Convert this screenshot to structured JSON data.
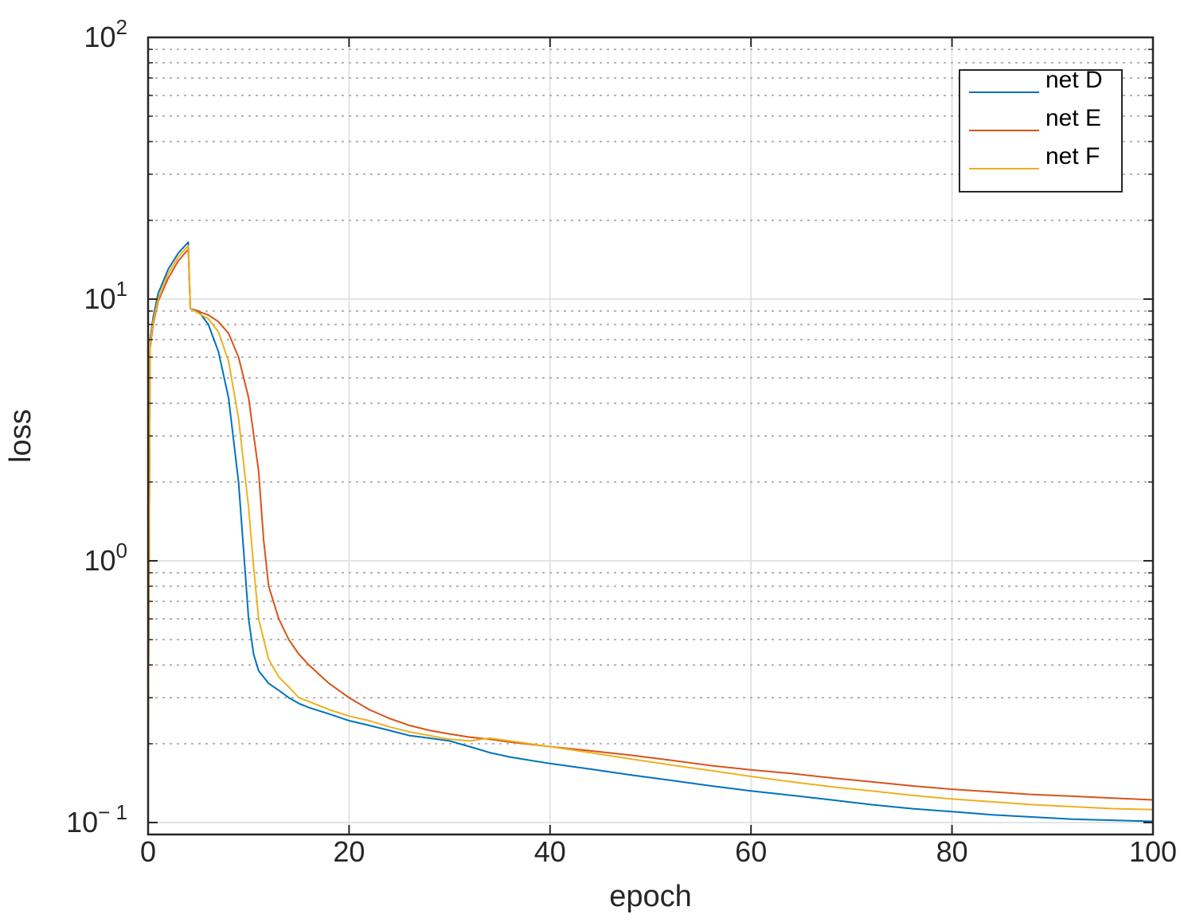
{
  "chart_data": {
    "type": "line",
    "title": "",
    "xlabel": "epoch",
    "ylabel": "loss",
    "xlim": [
      0,
      100
    ],
    "ylim": [
      0.09,
      100
    ],
    "yscale": "log",
    "xticks": [
      0,
      20,
      40,
      60,
      80,
      100
    ],
    "xtick_labels": [
      "0",
      "20",
      "40",
      "60",
      "80",
      "100"
    ],
    "yticks": [
      {
        "value": 0.1,
        "base": "10",
        "exp": "− 1"
      },
      {
        "value": 1,
        "base": "10",
        "exp": "0"
      },
      {
        "value": 10,
        "base": "10",
        "exp": "1"
      },
      {
        "value": 100,
        "base": "10",
        "exp": "2"
      }
    ],
    "grid": true,
    "minor_grid": true,
    "legend_position": "top-right",
    "series": [
      {
        "name": "net D",
        "color": "#0072BD",
        "x": [
          0,
          0.2,
          0.5,
          1,
          2,
          3,
          4,
          4.2,
          5,
          6,
          7,
          8,
          9,
          9.5,
          10,
          10.5,
          11,
          12,
          13,
          14,
          15,
          16,
          18,
          20,
          22,
          24,
          26,
          28,
          30,
          32,
          34,
          36,
          40,
          44,
          48,
          52,
          56,
          60,
          64,
          68,
          72,
          76,
          80,
          84,
          88,
          92,
          96,
          100
        ],
        "y": [
          0.18,
          7.0,
          8.5,
          10.5,
          13.0,
          15.0,
          16.5,
          9.2,
          9.0,
          8.0,
          6.3,
          4.2,
          2.0,
          1.1,
          0.6,
          0.44,
          0.38,
          0.34,
          0.32,
          0.3,
          0.285,
          0.275,
          0.26,
          0.245,
          0.235,
          0.225,
          0.215,
          0.21,
          0.205,
          0.195,
          0.185,
          0.178,
          0.168,
          0.16,
          0.152,
          0.145,
          0.138,
          0.132,
          0.127,
          0.122,
          0.117,
          0.113,
          0.11,
          0.107,
          0.105,
          0.103,
          0.102,
          0.101
        ]
      },
      {
        "name": "net E",
        "color": "#D95319",
        "x": [
          0,
          0.2,
          0.5,
          1,
          2,
          3,
          4,
          4.2,
          6,
          7,
          8,
          9,
          10,
          11,
          11.5,
          12,
          13,
          14,
          15,
          16,
          18,
          20,
          22,
          24,
          26,
          28,
          30,
          32,
          34,
          36,
          40,
          44,
          48,
          52,
          56,
          60,
          64,
          68,
          72,
          76,
          80,
          84,
          88,
          92,
          96,
          100
        ],
        "y": [
          0.18,
          6.5,
          8.0,
          9.8,
          12.0,
          14.0,
          15.5,
          9.2,
          8.7,
          8.2,
          7.4,
          6.0,
          4.2,
          2.2,
          1.2,
          0.8,
          0.6,
          0.5,
          0.44,
          0.4,
          0.34,
          0.3,
          0.27,
          0.25,
          0.235,
          0.225,
          0.218,
          0.212,
          0.208,
          0.203,
          0.195,
          0.188,
          0.181,
          0.173,
          0.165,
          0.159,
          0.154,
          0.148,
          0.143,
          0.138,
          0.134,
          0.131,
          0.128,
          0.126,
          0.124,
          0.122
        ]
      },
      {
        "name": "net F",
        "color": "#EDB120",
        "x": [
          0,
          0.2,
          0.5,
          1,
          2,
          3,
          4,
          4.2,
          6,
          7,
          8,
          9,
          10,
          10.5,
          11,
          12,
          13,
          14,
          15,
          16,
          18,
          20,
          22,
          24,
          26,
          28,
          30,
          32,
          34,
          36,
          40,
          44,
          48,
          52,
          56,
          60,
          64,
          68,
          72,
          76,
          80,
          84,
          88,
          92,
          96,
          100
        ],
        "y": [
          0.18,
          6.8,
          8.2,
          10.0,
          12.5,
          14.5,
          16.0,
          9.2,
          8.4,
          7.5,
          5.8,
          3.5,
          1.6,
          0.95,
          0.6,
          0.42,
          0.36,
          0.33,
          0.3,
          0.29,
          0.27,
          0.255,
          0.245,
          0.232,
          0.222,
          0.215,
          0.208,
          0.205,
          0.21,
          0.205,
          0.195,
          0.185,
          0.175,
          0.166,
          0.158,
          0.15,
          0.143,
          0.137,
          0.132,
          0.127,
          0.123,
          0.12,
          0.117,
          0.115,
          0.113,
          0.112
        ]
      }
    ]
  }
}
